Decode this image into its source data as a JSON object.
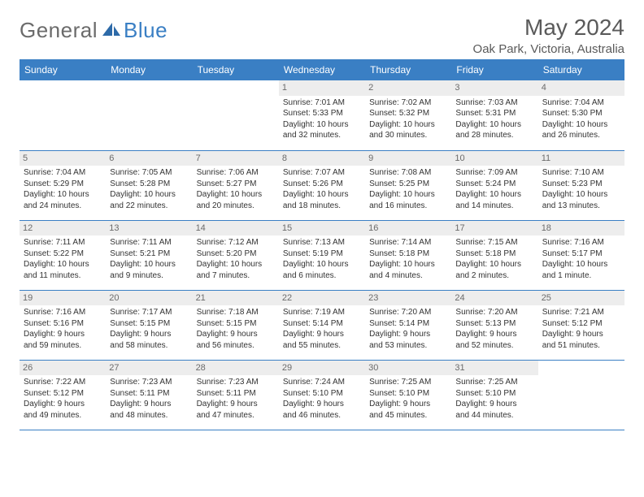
{
  "brand": {
    "text1": "General",
    "text2": "Blue",
    "color1": "#6b6b6b",
    "color2": "#3a7fc4"
  },
  "title": "May 2024",
  "location": "Oak Park, Victoria, Australia",
  "header_bg": "#3a7fc4",
  "header_fg": "#ffffff",
  "day_label_bg": "#ededed",
  "border_color": "#3a7fc4",
  "weekdays": [
    "Sunday",
    "Monday",
    "Tuesday",
    "Wednesday",
    "Thursday",
    "Friday",
    "Saturday"
  ],
  "first_weekday_index": 3,
  "days": [
    {
      "n": 1,
      "rise": "7:01 AM",
      "set": "5:33 PM",
      "h": 10,
      "m": 32
    },
    {
      "n": 2,
      "rise": "7:02 AM",
      "set": "5:32 PM",
      "h": 10,
      "m": 30
    },
    {
      "n": 3,
      "rise": "7:03 AM",
      "set": "5:31 PM",
      "h": 10,
      "m": 28
    },
    {
      "n": 4,
      "rise": "7:04 AM",
      "set": "5:30 PM",
      "h": 10,
      "m": 26
    },
    {
      "n": 5,
      "rise": "7:04 AM",
      "set": "5:29 PM",
      "h": 10,
      "m": 24
    },
    {
      "n": 6,
      "rise": "7:05 AM",
      "set": "5:28 PM",
      "h": 10,
      "m": 22
    },
    {
      "n": 7,
      "rise": "7:06 AM",
      "set": "5:27 PM",
      "h": 10,
      "m": 20
    },
    {
      "n": 8,
      "rise": "7:07 AM",
      "set": "5:26 PM",
      "h": 10,
      "m": 18
    },
    {
      "n": 9,
      "rise": "7:08 AM",
      "set": "5:25 PM",
      "h": 10,
      "m": 16
    },
    {
      "n": 10,
      "rise": "7:09 AM",
      "set": "5:24 PM",
      "h": 10,
      "m": 14
    },
    {
      "n": 11,
      "rise": "7:10 AM",
      "set": "5:23 PM",
      "h": 10,
      "m": 13
    },
    {
      "n": 12,
      "rise": "7:11 AM",
      "set": "5:22 PM",
      "h": 10,
      "m": 11
    },
    {
      "n": 13,
      "rise": "7:11 AM",
      "set": "5:21 PM",
      "h": 10,
      "m": 9
    },
    {
      "n": 14,
      "rise": "7:12 AM",
      "set": "5:20 PM",
      "h": 10,
      "m": 7
    },
    {
      "n": 15,
      "rise": "7:13 AM",
      "set": "5:19 PM",
      "h": 10,
      "m": 6
    },
    {
      "n": 16,
      "rise": "7:14 AM",
      "set": "5:18 PM",
      "h": 10,
      "m": 4
    },
    {
      "n": 17,
      "rise": "7:15 AM",
      "set": "5:18 PM",
      "h": 10,
      "m": 2
    },
    {
      "n": 18,
      "rise": "7:16 AM",
      "set": "5:17 PM",
      "h": 10,
      "m": 1
    },
    {
      "n": 19,
      "rise": "7:16 AM",
      "set": "5:16 PM",
      "h": 9,
      "m": 59
    },
    {
      "n": 20,
      "rise": "7:17 AM",
      "set": "5:15 PM",
      "h": 9,
      "m": 58
    },
    {
      "n": 21,
      "rise": "7:18 AM",
      "set": "5:15 PM",
      "h": 9,
      "m": 56
    },
    {
      "n": 22,
      "rise": "7:19 AM",
      "set": "5:14 PM",
      "h": 9,
      "m": 55
    },
    {
      "n": 23,
      "rise": "7:20 AM",
      "set": "5:14 PM",
      "h": 9,
      "m": 53
    },
    {
      "n": 24,
      "rise": "7:20 AM",
      "set": "5:13 PM",
      "h": 9,
      "m": 52
    },
    {
      "n": 25,
      "rise": "7:21 AM",
      "set": "5:12 PM",
      "h": 9,
      "m": 51
    },
    {
      "n": 26,
      "rise": "7:22 AM",
      "set": "5:12 PM",
      "h": 9,
      "m": 49
    },
    {
      "n": 27,
      "rise": "7:23 AM",
      "set": "5:11 PM",
      "h": 9,
      "m": 48
    },
    {
      "n": 28,
      "rise": "7:23 AM",
      "set": "5:11 PM",
      "h": 9,
      "m": 47
    },
    {
      "n": 29,
      "rise": "7:24 AM",
      "set": "5:10 PM",
      "h": 9,
      "m": 46
    },
    {
      "n": 30,
      "rise": "7:25 AM",
      "set": "5:10 PM",
      "h": 9,
      "m": 45
    },
    {
      "n": 31,
      "rise": "7:25 AM",
      "set": "5:10 PM",
      "h": 9,
      "m": 44
    }
  ]
}
